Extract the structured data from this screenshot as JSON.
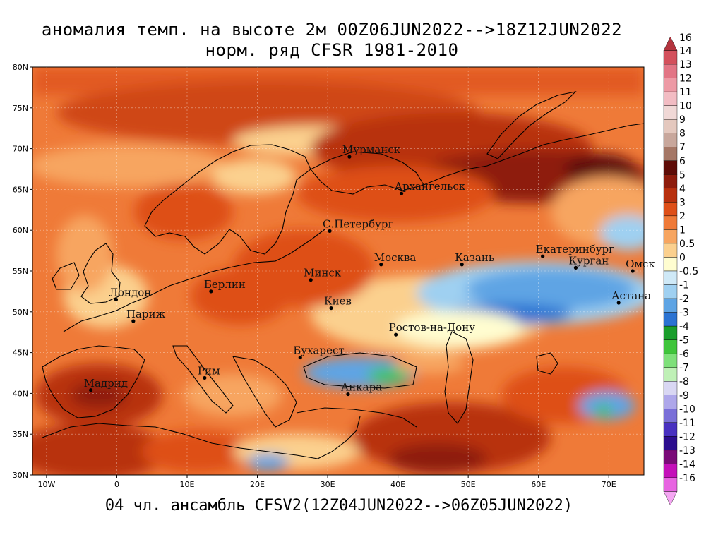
{
  "title": {
    "line1": "аномалия темп. на высоте 2м 00Z06JUN2022-->18Z12JUN2022",
    "line2": "норм. ряд CFSR 1981-2010"
  },
  "footer": "04 чл. ансамбль CFSV2(12Z04JUN2022-->06Z05JUN2022)",
  "map": {
    "lon_range": [
      -12,
      75
    ],
    "lat_range": [
      30,
      80
    ],
    "lat_ticks": [
      "30N",
      "35N",
      "40N",
      "45N",
      "50N",
      "55N",
      "60N",
      "65N",
      "70N",
      "75N",
      "80N"
    ],
    "lon_ticks": [
      "10W",
      "0",
      "10E",
      "20E",
      "30E",
      "40E",
      "50E",
      "60E",
      "70E"
    ],
    "cities": [
      {
        "name": "Мурманск",
        "lon": 33.1,
        "lat": 69.0
      },
      {
        "name": "Архангельск",
        "lon": 40.5,
        "lat": 64.5
      },
      {
        "name": "С.Петербург",
        "lon": 30.3,
        "lat": 59.9
      },
      {
        "name": "Москва",
        "lon": 37.6,
        "lat": 55.8
      },
      {
        "name": "Казань",
        "lon": 49.1,
        "lat": 55.8
      },
      {
        "name": "Екатеринбург",
        "lon": 60.6,
        "lat": 56.8
      },
      {
        "name": "Курган",
        "lon": 65.3,
        "lat": 55.4
      },
      {
        "name": "Омск",
        "lon": 73.4,
        "lat": 55.0
      },
      {
        "name": "Астана",
        "lon": 71.4,
        "lat": 51.1
      },
      {
        "name": "Минск",
        "lon": 27.6,
        "lat": 53.9
      },
      {
        "name": "Берлин",
        "lon": 13.4,
        "lat": 52.5
      },
      {
        "name": "Лондон",
        "lon": -0.1,
        "lat": 51.5
      },
      {
        "name": "Париж",
        "lon": 2.35,
        "lat": 48.86
      },
      {
        "name": "Киев",
        "lon": 30.5,
        "lat": 50.45
      },
      {
        "name": "Ростов-на-Дону",
        "lon": 39.7,
        "lat": 47.2
      },
      {
        "name": "Бухарест",
        "lon": 26.1,
        "lat": 44.4
      },
      {
        "name": "Рим",
        "lon": 12.5,
        "lat": 41.9
      },
      {
        "name": "Мадрид",
        "lon": -3.7,
        "lat": 40.4
      },
      {
        "name": "Анкара",
        "lon": 32.9,
        "lat": 39.9
      }
    ],
    "anomaly_regions": [
      {
        "label": "6",
        "note": "arctic russia max",
        "lon": [
          42,
          74
        ],
        "lat": [
          63,
          70
        ]
      },
      {
        "label": "-2",
        "note": "kazakhstan min",
        "lon": [
          48,
          75
        ],
        "lat": [
          48,
          56
        ]
      },
      {
        "label": "-3",
        "note": "black sea min",
        "lon": [
          28,
          42
        ],
        "lat": [
          41,
          44
        ]
      }
    ]
  },
  "colorbar": {
    "labels": [
      "16",
      "14",
      "13",
      "12",
      "11",
      "10",
      "9",
      "8",
      "7",
      "6",
      "5",
      "4",
      "3",
      "2",
      "1",
      "0.5",
      "0",
      "-0.5",
      "-1",
      "-2",
      "-3",
      "-4",
      "-5",
      "-6",
      "-7",
      "-8",
      "-9",
      "-10",
      "-11",
      "-12",
      "-13",
      "-14",
      "-16"
    ],
    "colors": [
      "#b4343e",
      "#d3505c",
      "#e27585",
      "#ed9aa5",
      "#f2bcc3",
      "#f0d8d6",
      "#e4c8be",
      "#c8a79c",
      "#a57766",
      "#5e0c07",
      "#8e1c0c",
      "#b8300e",
      "#de4f18",
      "#ef7a38",
      "#f7a560",
      "#fbd08e",
      "#fffdd0",
      "#cfe9f7",
      "#9fd0f1",
      "#5ea4e4",
      "#2b73d2",
      "#1a9e2c",
      "#3fc53b",
      "#7ee07a",
      "#bff0b6",
      "#d9d7f3",
      "#aea7ea",
      "#7a6fd8",
      "#4830c0",
      "#2c0d8e",
      "#7a0a78",
      "#c40fb9",
      "#e764e1",
      "#f5a6f3"
    ]
  }
}
